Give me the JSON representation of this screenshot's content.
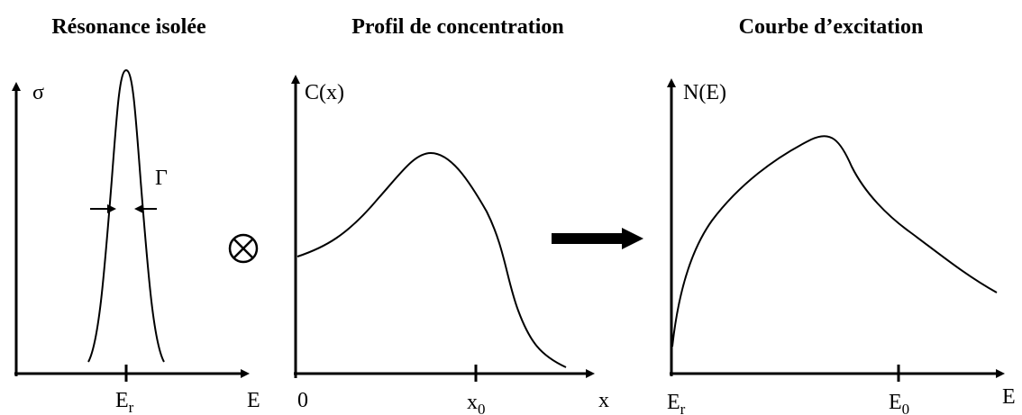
{
  "panels": [
    {
      "title": "Résonance isolée",
      "y_label": "σ",
      "x_label": "E",
      "x_tick": {
        "text": "E",
        "sub": "r"
      },
      "width_label": "Γ"
    },
    {
      "title": "Profil de concentration",
      "y_label": "C(x)",
      "x_label": "x",
      "origin_label": "0",
      "x_tick": {
        "text": "x",
        "sub": "0"
      }
    },
    {
      "title": "Courbe d’excitation",
      "y_label": "N(E)",
      "x_label": "E",
      "origin_label": {
        "text": "E",
        "sub": "r"
      },
      "x_tick": {
        "text": "E",
        "sub": "0"
      }
    }
  ]
}
